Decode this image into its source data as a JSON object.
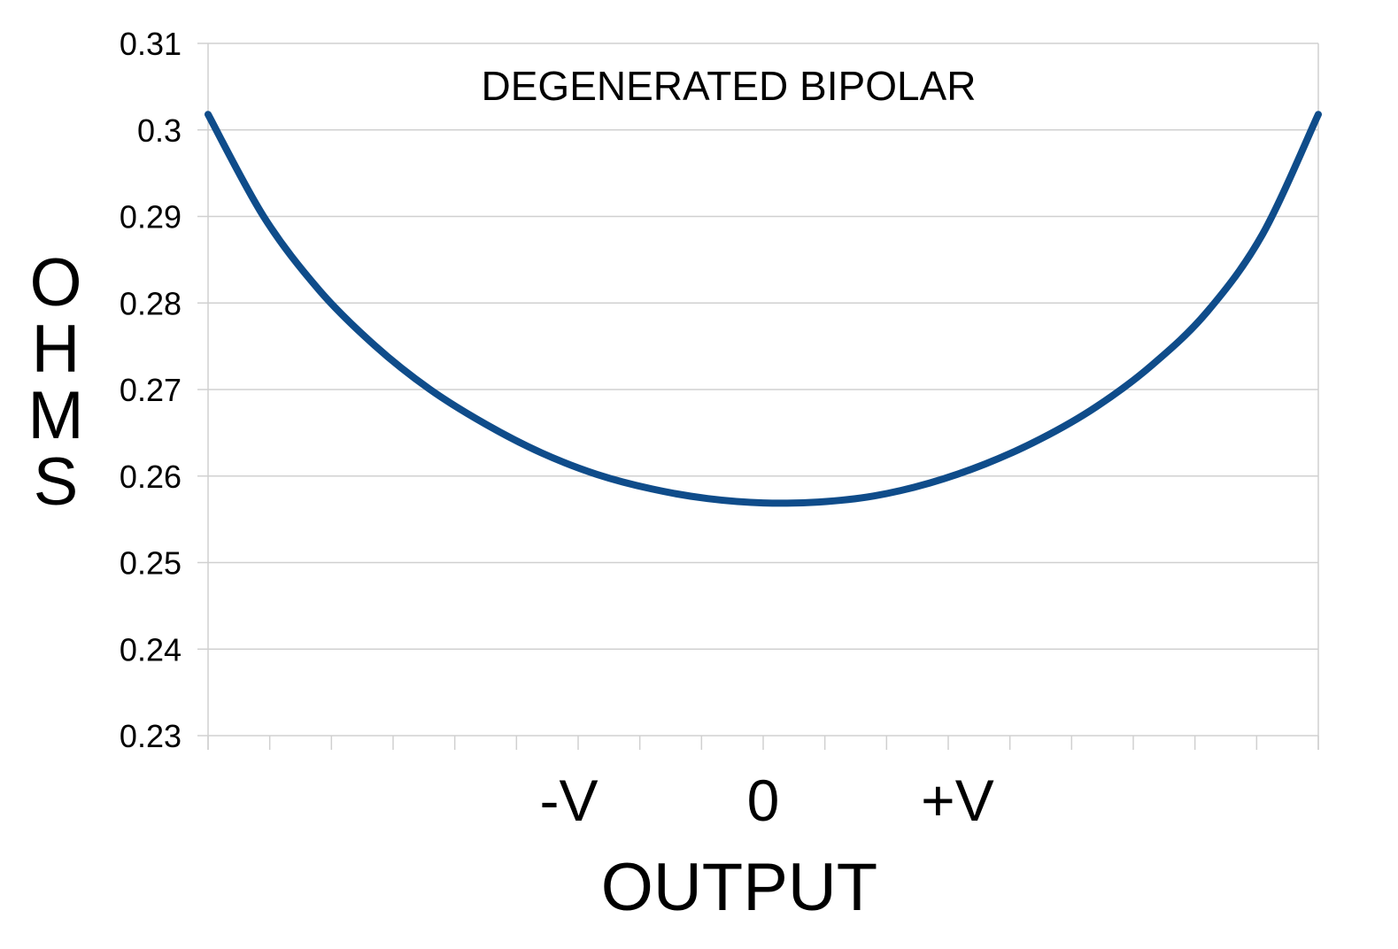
{
  "chart_data": {
    "type": "line",
    "title": "DEGENERATED BIPOLAR",
    "xlabel": "OUTPUT",
    "ylabel": "OHMS",
    "x_tick_labels": [
      {
        "x": -0.35,
        "label": "-V"
      },
      {
        "x": 0,
        "label": "0"
      },
      {
        "x": 0.35,
        "label": "+V"
      }
    ],
    "xlim": [
      -1,
      1
    ],
    "ylim": [
      0.23,
      0.31
    ],
    "yticks": [
      "0.31",
      "0.3",
      "0.29",
      "0.28",
      "0.27",
      "0.26",
      "0.25",
      "0.24",
      "0.23"
    ],
    "x_minor_tick_count": 18,
    "grid": true,
    "series": [
      {
        "color": "#0f4c8a",
        "x": [
          -1.0,
          -0.9,
          -0.8,
          -0.7,
          -0.6,
          -0.5,
          -0.4,
          -0.3,
          -0.2,
          -0.1,
          0.0,
          0.1,
          0.2,
          0.3,
          0.4,
          0.5,
          0.6,
          0.7,
          0.8,
          0.9,
          1.0
        ],
        "y": [
          0.3018,
          0.29,
          0.2815,
          0.2751,
          0.27,
          0.266,
          0.2627,
          0.2602,
          0.2585,
          0.2574,
          0.2569,
          0.257,
          0.2577,
          0.2592,
          0.2614,
          0.2643,
          0.268,
          0.2728,
          0.279,
          0.288,
          0.3018
        ]
      }
    ]
  }
}
